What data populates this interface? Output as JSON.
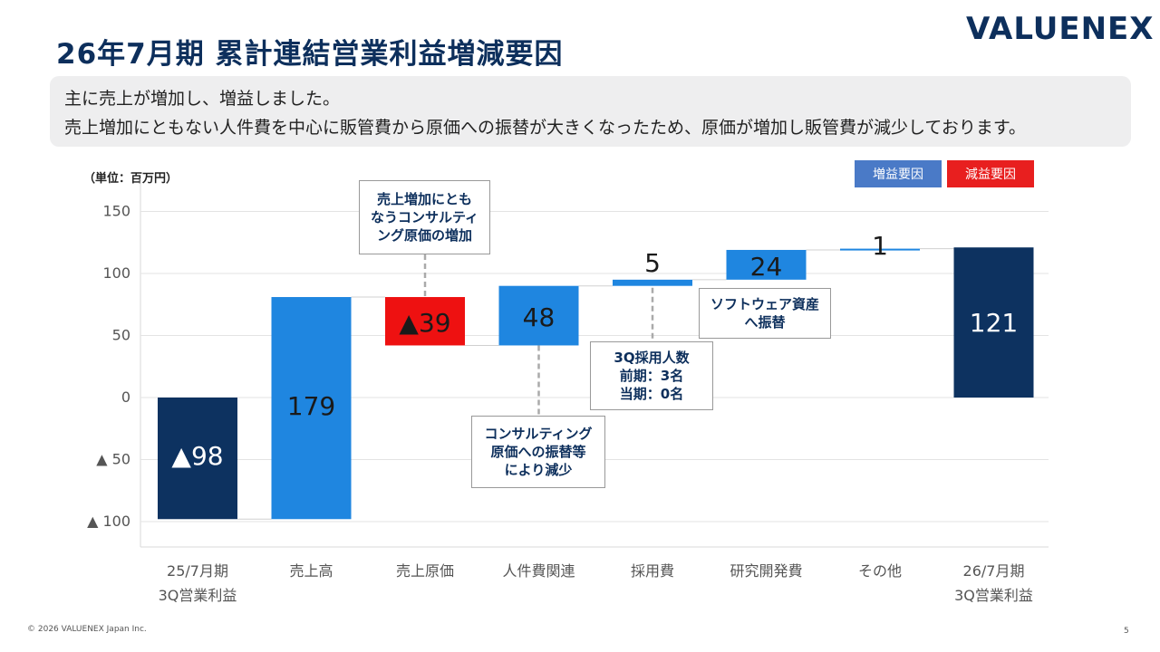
{
  "header": {
    "title": "26年7月期 累計連結営業利益増減要因",
    "logo": "VALUENEX"
  },
  "summary": {
    "line1": "主に売上が増加し、増益しました。",
    "line2": "売上増加にともない人件費を中心に販管費から原価への振替が大きくなったため、原価が増加し販管費が減少しております。"
  },
  "unit_label": "（単位：百万円）",
  "legend": [
    {
      "label": "増益要因",
      "color": "#4a7ac7"
    },
    {
      "label": "減益要因",
      "color": "#e81f1f"
    }
  ],
  "colors": {
    "total": "#0d3260",
    "increase": "#1f86e0",
    "decrease": "#ee1111",
    "navy": "#0d2f5c"
  },
  "chart_data": {
    "type": "bar",
    "subtype": "waterfall",
    "categories": [
      [
        "25/7月期",
        "3Q営業利益"
      ],
      [
        "売上高"
      ],
      [
        "売上原価"
      ],
      [
        "人件費関連"
      ],
      [
        "採用費"
      ],
      [
        "研究開発費"
      ],
      [
        "その他"
      ],
      [
        "26/7月期",
        "3Q営業利益"
      ]
    ],
    "bars": [
      {
        "kind": "total",
        "start": 0,
        "end": -98,
        "label": "▲98"
      },
      {
        "kind": "increase",
        "start": -98,
        "end": 81,
        "label": "179"
      },
      {
        "kind": "decrease",
        "start": 81,
        "end": 42,
        "label": "▲39"
      },
      {
        "kind": "increase",
        "start": 42,
        "end": 90,
        "label": "48"
      },
      {
        "kind": "increase",
        "start": 90,
        "end": 95,
        "label": "5"
      },
      {
        "kind": "increase",
        "start": 95,
        "end": 119,
        "label": "24"
      },
      {
        "kind": "increase",
        "start": 119,
        "end": 120,
        "label": "1"
      },
      {
        "kind": "total",
        "start": 0,
        "end": 121,
        "label": "121"
      }
    ],
    "yticks": [
      {
        "value": 150,
        "label": "150"
      },
      {
        "value": 100,
        "label": "100"
      },
      {
        "value": 50,
        "label": "50"
      },
      {
        "value": 0,
        "label": "0"
      },
      {
        "value": -50,
        "label": "▲ 50"
      },
      {
        "value": -100,
        "label": "▲ 100"
      }
    ],
    "ylim": [
      -120,
      150
    ],
    "grid": true,
    "legend_position": "top-right"
  },
  "annotations": {
    "cost_of_sales": [
      "売上増加にとも",
      "なうコンサルティ",
      "ング原価の増加"
    ],
    "personnel": [
      "コンサルティング",
      "原価への振替等",
      "により減少"
    ],
    "recruiting": [
      "3Q採用人数",
      "前期：3名",
      "当期：0名"
    ],
    "rnd": [
      "ソフトウェア資産",
      "へ振替"
    ]
  },
  "footer": {
    "copyright": "© 2026 VALUENEX Japan Inc.",
    "page": "5"
  }
}
